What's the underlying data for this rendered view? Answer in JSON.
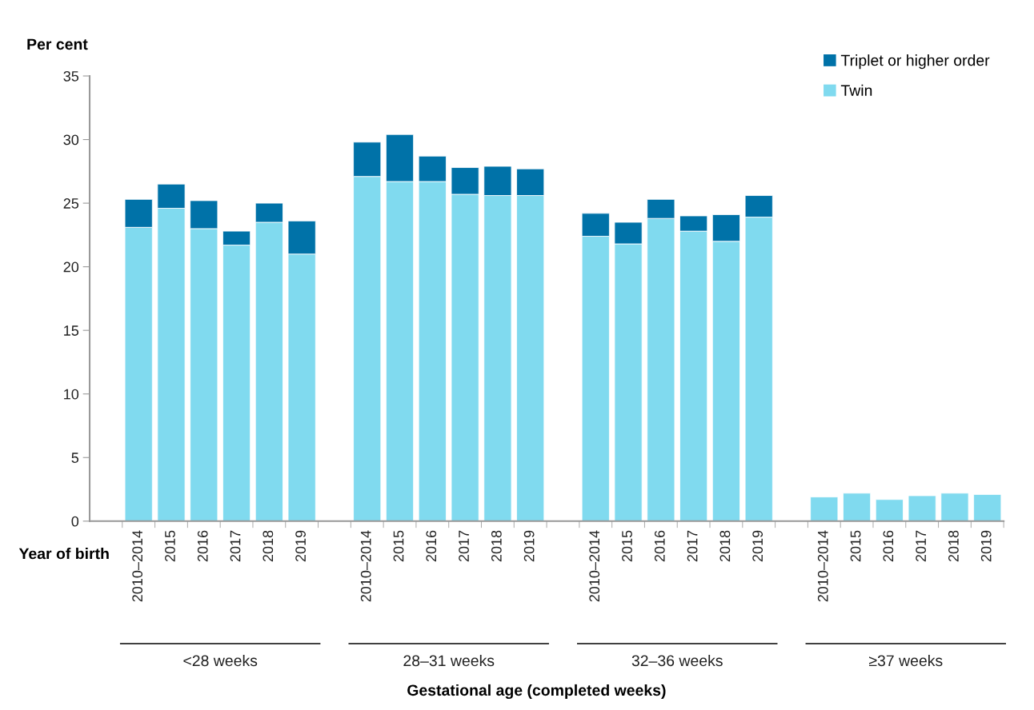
{
  "chart_data": {
    "type": "bar",
    "stacked": true,
    "ylabel": "Per cent",
    "categories": [
      "2010–2014",
      "2015",
      "2016",
      "2017",
      "2018",
      "2019",
      null,
      "2010–2014",
      "2015",
      "2016",
      "2017",
      "2018",
      "2019",
      null,
      "2010–2014",
      "2015",
      "2016",
      "2017",
      "2018",
      "2019",
      null,
      "2010–2014",
      "2015",
      "2016",
      "2017",
      "2018",
      "2019"
    ],
    "series": [
      {
        "name": "Twin",
        "color": "#80daef",
        "values": [
          23.1,
          24.6,
          23.0,
          21.7,
          23.5,
          21.0,
          null,
          27.1,
          26.7,
          26.7,
          25.7,
          25.6,
          25.6,
          null,
          22.4,
          21.8,
          23.8,
          22.8,
          22.0,
          23.9,
          null,
          1.9,
          2.2,
          1.7,
          2.0,
          2.2,
          2.1
        ]
      },
      {
        "name": "Triplet or higher order",
        "color": "#0072a8",
        "values": [
          2.2,
          1.9,
          2.2,
          1.1,
          1.5,
          2.6,
          null,
          2.7,
          3.7,
          2.0,
          2.1,
          2.3,
          2.1,
          null,
          1.8,
          1.7,
          1.5,
          1.2,
          2.1,
          1.7,
          null,
          null,
          null,
          null,
          null,
          null,
          null
        ]
      }
    ],
    "annotations": [
      "Year of birth",
      "<28 weeks",
      "28–31 weeks",
      "32–36 weeks",
      "≥37 weeks",
      "Gestational age (completed weeks)"
    ],
    "ylim": [
      0,
      35
    ],
    "yticks": [
      0,
      5,
      10,
      15,
      20,
      25,
      30,
      35
    ],
    "legend": "top right",
    "grid": false
  }
}
